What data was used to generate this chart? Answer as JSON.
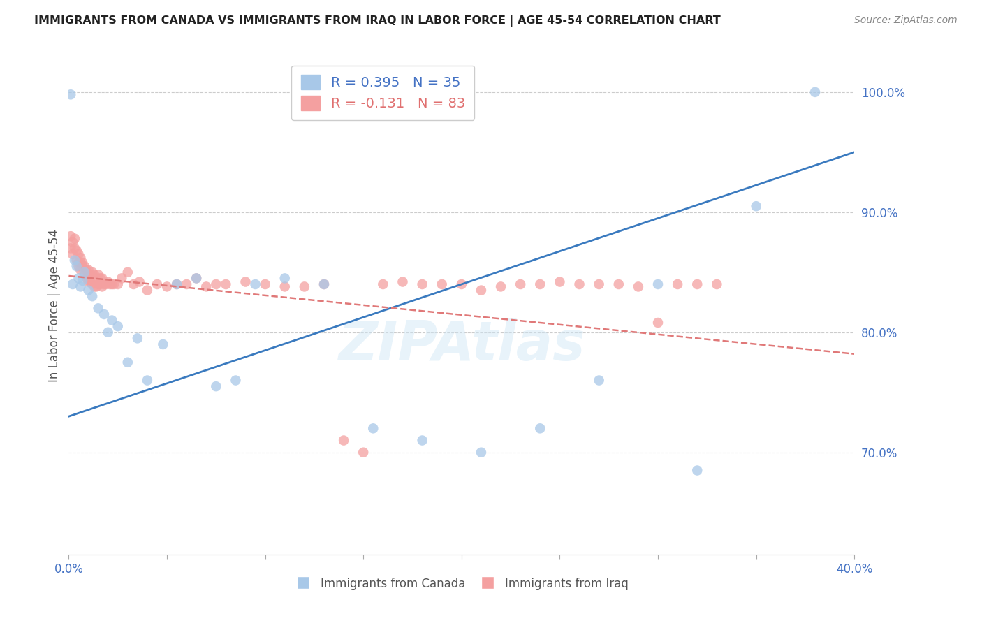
{
  "title": "IMMIGRANTS FROM CANADA VS IMMIGRANTS FROM IRAQ IN LABOR FORCE | AGE 45-54 CORRELATION CHART",
  "source": "Source: ZipAtlas.com",
  "ylabel": "In Labor Force | Age 45-54",
  "xlim": [
    0.0,
    0.4
  ],
  "ylim": [
    0.615,
    1.03
  ],
  "yticks": [
    0.7,
    0.8,
    0.9,
    1.0
  ],
  "ytick_labels": [
    "70.0%",
    "80.0%",
    "90.0%",
    "100.0%"
  ],
  "xticks": [
    0.0,
    0.05,
    0.1,
    0.15,
    0.2,
    0.25,
    0.3,
    0.35,
    0.4
  ],
  "xtick_labels": [
    "0.0%",
    "",
    "",
    "",
    "",
    "",
    "",
    "",
    "40.0%"
  ],
  "canada_color": "#a8c8e8",
  "iraq_color": "#f4a0a0",
  "trendline_canada_color": "#3a7abf",
  "trendline_iraq_color": "#e07878",
  "canada_label": "Immigrants from Canada",
  "iraq_label": "Immigrants from Iraq",
  "legend_canada_text": "R = 0.395   N = 35",
  "legend_iraq_text": "R = -0.131   N = 83",
  "legend_canada_color": "#4472c4",
  "legend_iraq_color": "#e07070",
  "watermark": "ZIPAtlas",
  "canada_x": [
    0.001,
    0.002,
    0.003,
    0.004,
    0.005,
    0.006,
    0.007,
    0.008,
    0.01,
    0.012,
    0.015,
    0.018,
    0.02,
    0.022,
    0.025,
    0.03,
    0.035,
    0.04,
    0.048,
    0.055,
    0.065,
    0.075,
    0.085,
    0.095,
    0.11,
    0.13,
    0.155,
    0.18,
    0.21,
    0.24,
    0.27,
    0.3,
    0.32,
    0.35,
    0.38
  ],
  "canada_y": [
    0.998,
    0.84,
    0.86,
    0.855,
    0.845,
    0.838,
    0.843,
    0.85,
    0.835,
    0.83,
    0.82,
    0.815,
    0.8,
    0.81,
    0.805,
    0.775,
    0.795,
    0.76,
    0.79,
    0.84,
    0.845,
    0.755,
    0.76,
    0.84,
    0.845,
    0.84,
    0.72,
    0.71,
    0.7,
    0.72,
    0.76,
    0.84,
    0.685,
    0.905,
    1.0
  ],
  "iraq_x": [
    0.001,
    0.001,
    0.002,
    0.002,
    0.003,
    0.003,
    0.004,
    0.004,
    0.005,
    0.005,
    0.005,
    0.006,
    0.006,
    0.006,
    0.007,
    0.007,
    0.008,
    0.008,
    0.009,
    0.009,
    0.01,
    0.01,
    0.01,
    0.01,
    0.011,
    0.011,
    0.012,
    0.012,
    0.013,
    0.013,
    0.014,
    0.014,
    0.015,
    0.015,
    0.016,
    0.016,
    0.017,
    0.017,
    0.018,
    0.019,
    0.02,
    0.021,
    0.022,
    0.023,
    0.025,
    0.027,
    0.03,
    0.033,
    0.036,
    0.04,
    0.045,
    0.05,
    0.055,
    0.06,
    0.065,
    0.07,
    0.075,
    0.08,
    0.09,
    0.1,
    0.11,
    0.12,
    0.13,
    0.14,
    0.15,
    0.16,
    0.17,
    0.18,
    0.19,
    0.2,
    0.21,
    0.22,
    0.23,
    0.24,
    0.25,
    0.26,
    0.27,
    0.28,
    0.29,
    0.3,
    0.31,
    0.32,
    0.33
  ],
  "iraq_y": [
    0.88,
    0.87,
    0.875,
    0.865,
    0.878,
    0.87,
    0.868,
    0.86,
    0.858,
    0.855,
    0.865,
    0.862,
    0.852,
    0.858,
    0.858,
    0.855,
    0.855,
    0.848,
    0.852,
    0.845,
    0.848,
    0.845,
    0.842,
    0.852,
    0.848,
    0.842,
    0.85,
    0.84,
    0.848,
    0.838,
    0.845,
    0.838,
    0.848,
    0.84,
    0.845,
    0.84,
    0.845,
    0.838,
    0.84,
    0.84,
    0.842,
    0.84,
    0.84,
    0.84,
    0.84,
    0.845,
    0.85,
    0.84,
    0.842,
    0.835,
    0.84,
    0.838,
    0.84,
    0.84,
    0.845,
    0.838,
    0.84,
    0.84,
    0.842,
    0.84,
    0.838,
    0.838,
    0.84,
    0.71,
    0.7,
    0.84,
    0.842,
    0.84,
    0.84,
    0.84,
    0.835,
    0.838,
    0.84,
    0.84,
    0.842,
    0.84,
    0.84,
    0.84,
    0.838,
    0.808,
    0.84,
    0.84,
    0.84
  ]
}
